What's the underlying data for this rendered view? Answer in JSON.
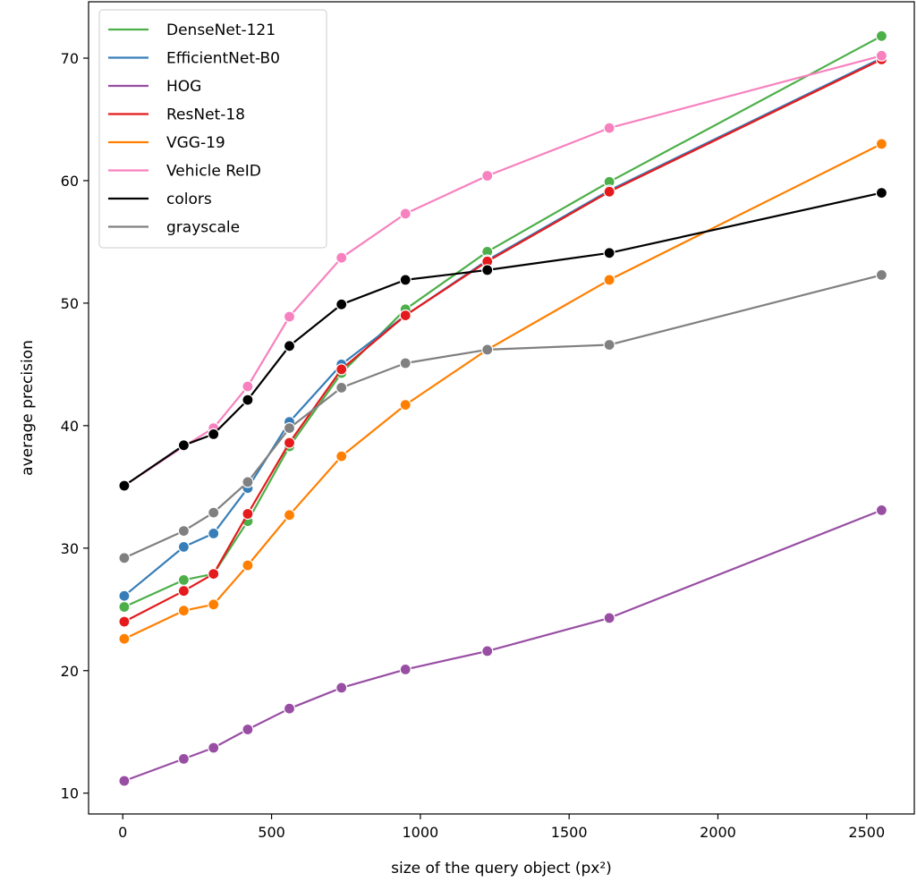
{
  "chart_data": {
    "type": "line",
    "title": "",
    "xlabel": "size of the query object (px²)",
    "ylabel": "average precision",
    "xlim": [
      -115,
      2660
    ],
    "ylim": [
      8.3,
      74.6
    ],
    "xticks": [
      0,
      500,
      1000,
      1500,
      2000,
      2500
    ],
    "yticks": [
      10,
      20,
      30,
      40,
      50,
      60,
      70
    ],
    "grid": false,
    "legend_position": "top-left",
    "x": [
      5,
      205,
      305,
      420,
      560,
      735,
      950,
      1225,
      1635,
      2550
    ],
    "series": [
      {
        "name": "DenseNet-121",
        "color": "#4daf4a",
        "values": [
          25.2,
          27.4,
          27.9,
          32.2,
          38.3,
          44.3,
          49.5,
          54.2,
          59.9,
          71.8
        ]
      },
      {
        "name": "EfficientNet-B0",
        "color": "#377eb8",
        "values": [
          26.1,
          30.1,
          31.2,
          34.9,
          40.3,
          45.0,
          49.0,
          53.5,
          59.2,
          70.0
        ]
      },
      {
        "name": "HOG",
        "color": "#984ea3",
        "values": [
          11.0,
          12.8,
          13.7,
          15.2,
          16.9,
          18.6,
          20.1,
          21.6,
          24.3,
          33.1
        ]
      },
      {
        "name": "ResNet-18",
        "color": "#e41a1c",
        "values": [
          24.0,
          26.5,
          27.9,
          32.8,
          38.6,
          44.6,
          49.0,
          53.4,
          59.1,
          69.9
        ]
      },
      {
        "name": "VGG-19",
        "color": "#ff7f00",
        "values": [
          22.6,
          24.9,
          25.4,
          28.6,
          32.7,
          37.5,
          41.7,
          46.2,
          51.9,
          63.0
        ]
      },
      {
        "name": "Vehicle ReID",
        "color": "#f781bf",
        "values": [
          35.1,
          38.3,
          39.8,
          43.2,
          48.9,
          53.7,
          57.3,
          60.4,
          64.3,
          70.2
        ]
      },
      {
        "name": "colors",
        "color": "#000000",
        "values": [
          35.1,
          38.4,
          39.3,
          42.1,
          46.5,
          49.9,
          51.9,
          52.7,
          54.1,
          59.0
        ]
      },
      {
        "name": "grayscale",
        "color": "#808080",
        "values": [
          29.2,
          31.4,
          32.9,
          35.4,
          39.8,
          43.1,
          45.1,
          46.2,
          46.6,
          52.3
        ]
      }
    ]
  }
}
